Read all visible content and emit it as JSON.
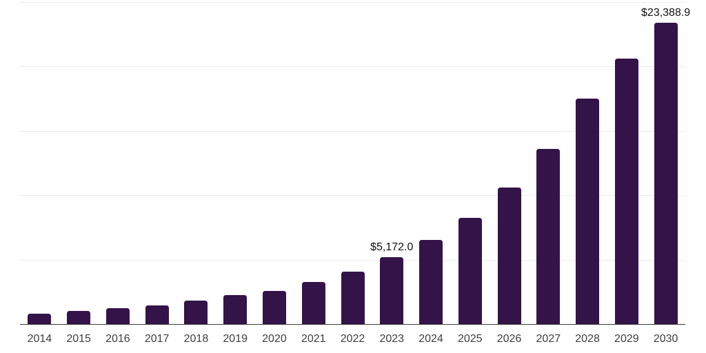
{
  "chart_data": {
    "type": "bar",
    "title": "",
    "xlabel": "",
    "ylabel": "",
    "categories": [
      "2014",
      "2015",
      "2016",
      "2017",
      "2018",
      "2019",
      "2020",
      "2021",
      "2022",
      "2023",
      "2024",
      "2025",
      "2026",
      "2027",
      "2028",
      "2029",
      "2030"
    ],
    "values": [
      780,
      1040,
      1210,
      1460,
      1800,
      2230,
      2580,
      3250,
      4080,
      5172.0,
      6520,
      8270,
      10590,
      13620,
      17490,
      20590,
      23388.9
    ],
    "labeled_points": [
      {
        "year": "2023",
        "label": "$5,172.0"
      },
      {
        "year": "2030",
        "label": "$23,388.9"
      }
    ],
    "ylim": [
      0,
      25000
    ],
    "gridline_interval": 5000,
    "grid": "horizontal",
    "y_axis_tick_labels_visible": false,
    "legend": "none",
    "colors": {
      "bar": "#341349",
      "grid": "#ececec",
      "axis_line": "#3c3c3c",
      "tick_label": "#3d3d3d",
      "data_label": "#111111",
      "background": "#ffffff"
    }
  }
}
